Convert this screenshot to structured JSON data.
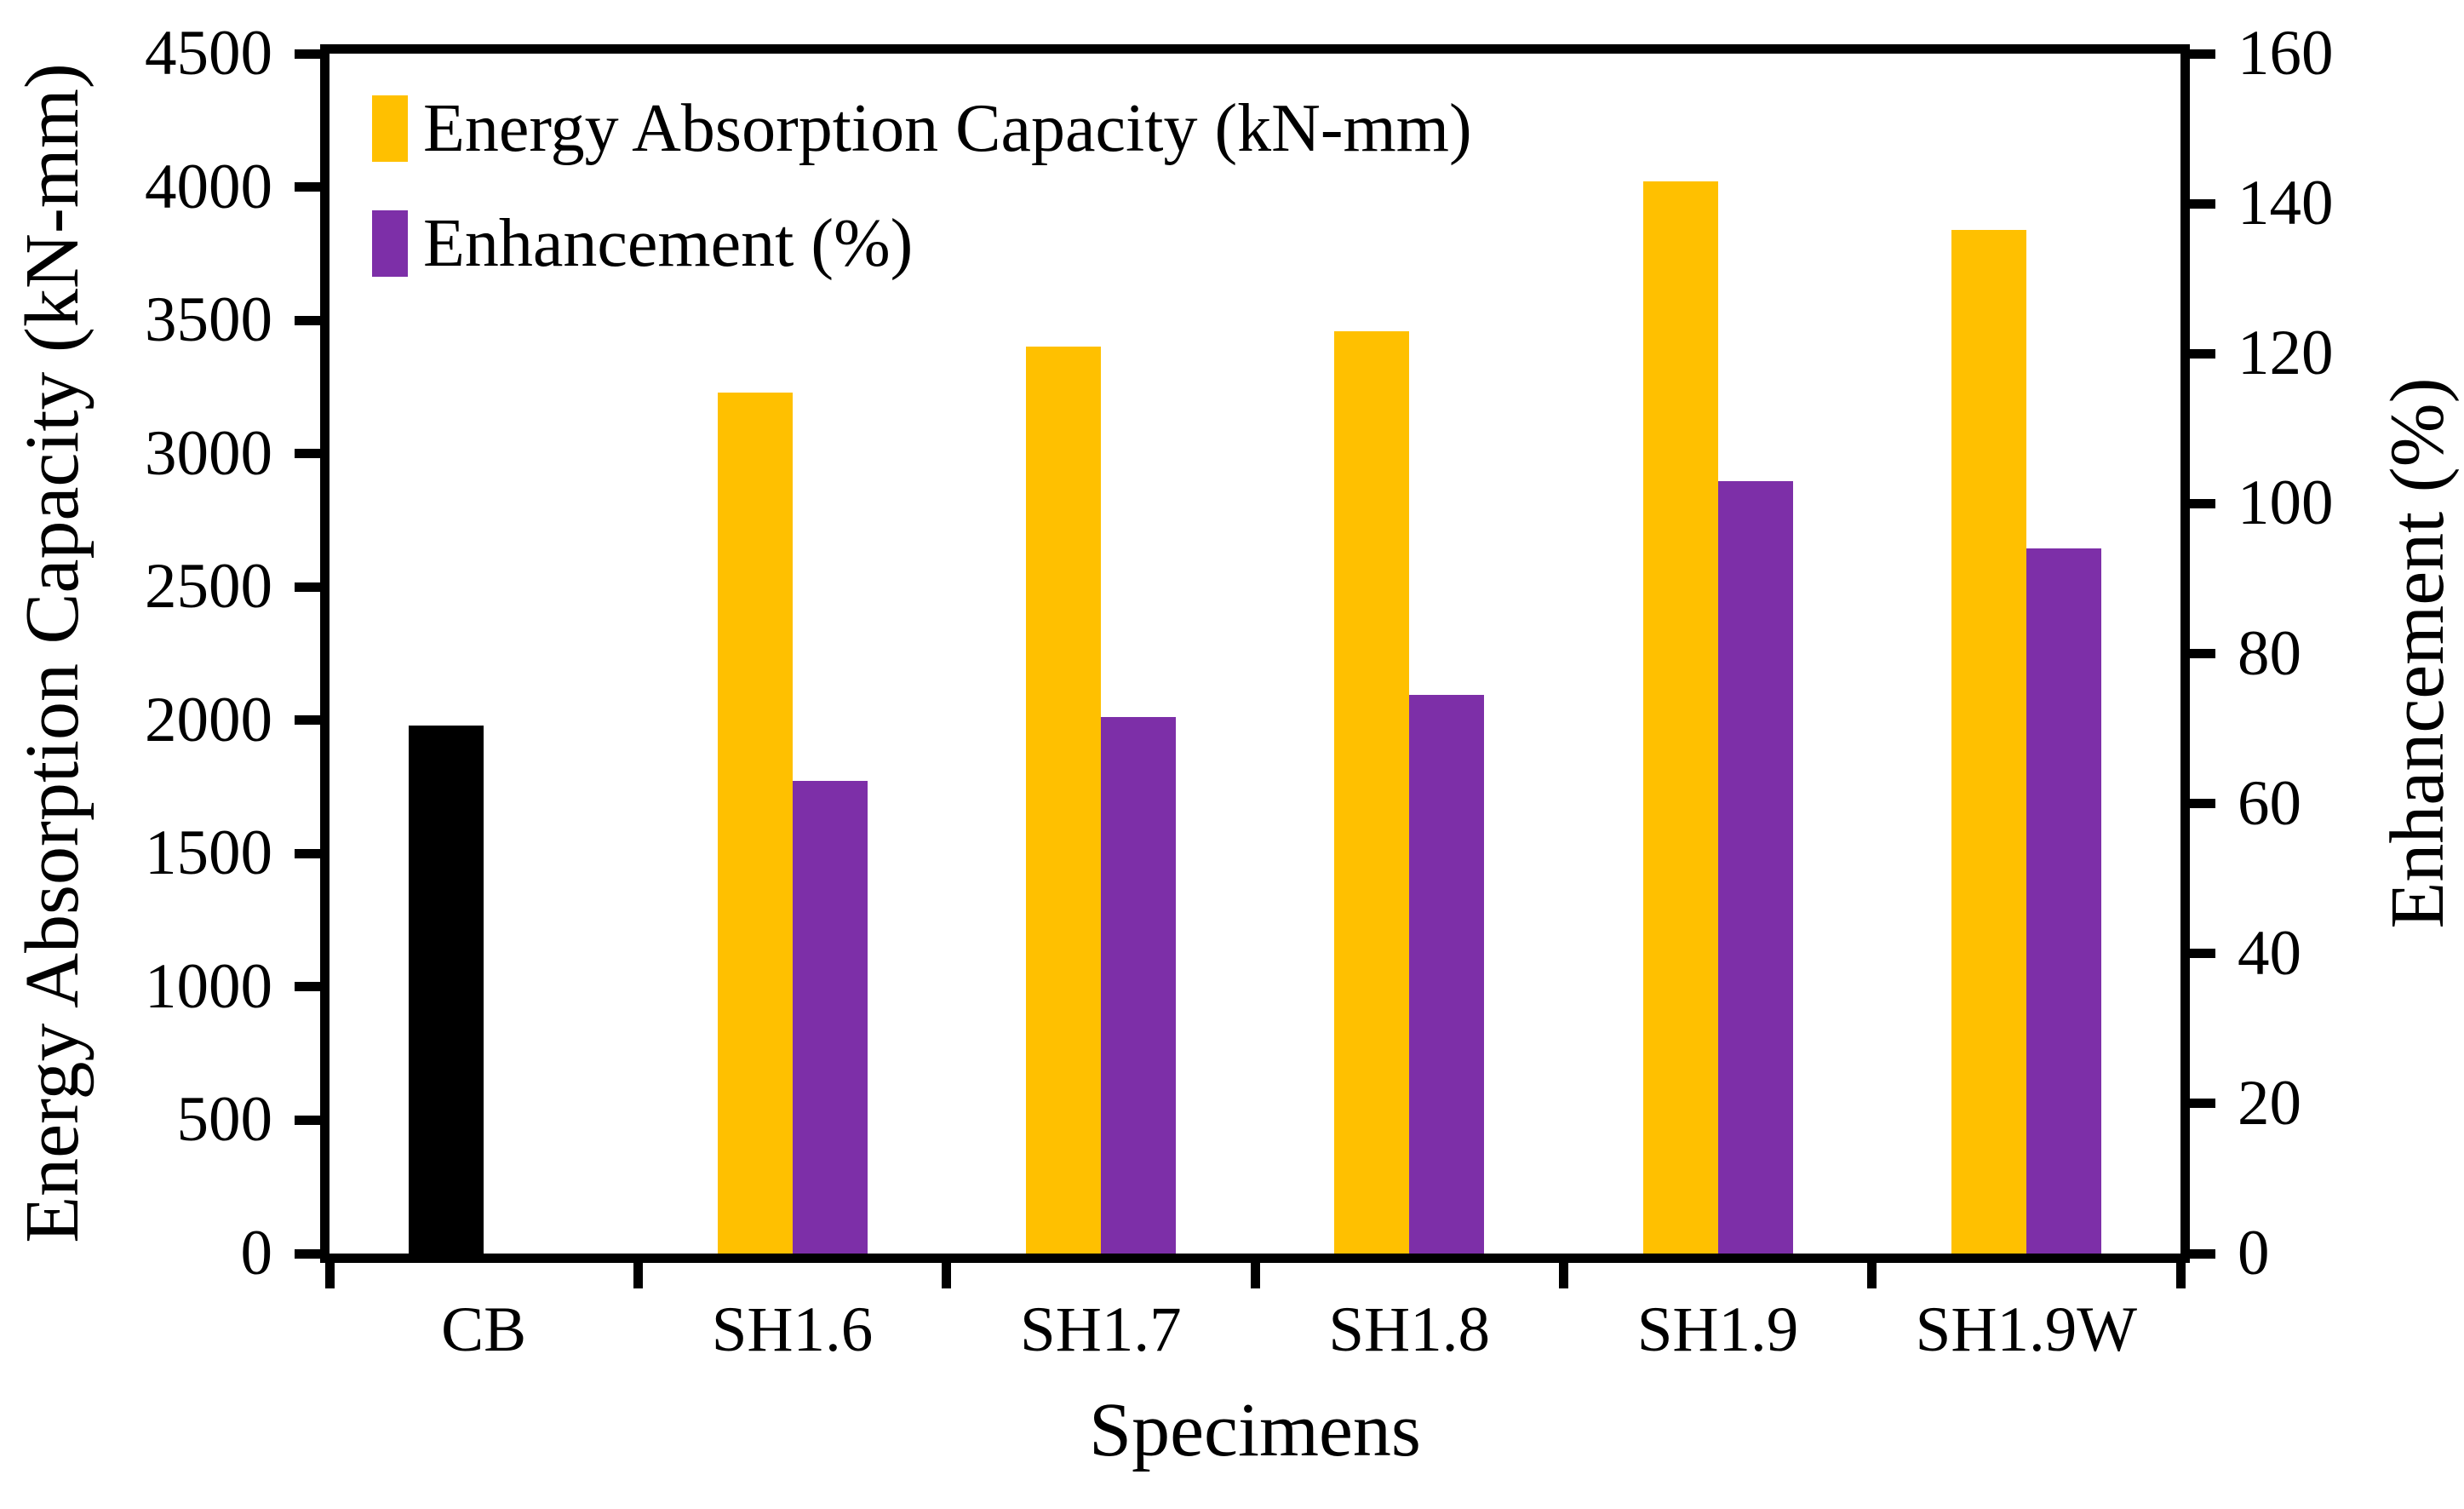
{
  "chart_data": {
    "type": "bar",
    "title": "",
    "xlabel": "Specimens",
    "ylabel_left": "Energy Absorption Capacity (kN-mm)",
    "ylabel_right": "Enhancement (%)",
    "categories": [
      "CB",
      "SH1.6",
      "SH1.7",
      "SH1.8",
      "SH1.9",
      "SH1.9W"
    ],
    "series": [
      {
        "name": "Energy Absorption Capacity (kN-mm)",
        "axis": "left",
        "values": [
          1980,
          3230,
          3400,
          3460,
          4020,
          3840
        ],
        "colors": [
          "#000000",
          "#FFC000",
          "#FFC000",
          "#FFC000",
          "#FFC000",
          "#FFC000"
        ]
      },
      {
        "name": "Enhancement (%)",
        "axis": "right",
        "values": [
          null,
          63,
          71.5,
          74.5,
          103,
          94
        ],
        "colors": [
          "#7D2FA8",
          "#7D2FA8",
          "#7D2FA8",
          "#7D2FA8",
          "#7D2FA8",
          "#7D2FA8"
        ]
      }
    ],
    "left_axis": {
      "min": 0,
      "max": 4500,
      "step": 500,
      "ticks": [
        0,
        500,
        1000,
        1500,
        2000,
        2500,
        3000,
        3500,
        4000,
        4500
      ]
    },
    "right_axis": {
      "min": 0,
      "max": 160,
      "step": 20,
      "ticks": [
        0,
        20,
        40,
        60,
        80,
        100,
        120,
        140,
        160
      ]
    },
    "legend": [
      {
        "label": "Energy Absorption Capacity (kN-mm)",
        "color": "#FFC000"
      },
      {
        "label": "Enhancement (%)",
        "color": "#7D2FA8"
      }
    ],
    "legend_position": "top-left-inside",
    "grid": false,
    "frame": true,
    "colors": {
      "eac_default": "#FFC000",
      "eac_control": "#000000",
      "enhancement": "#7D2FA8",
      "axis": "#000000"
    }
  }
}
